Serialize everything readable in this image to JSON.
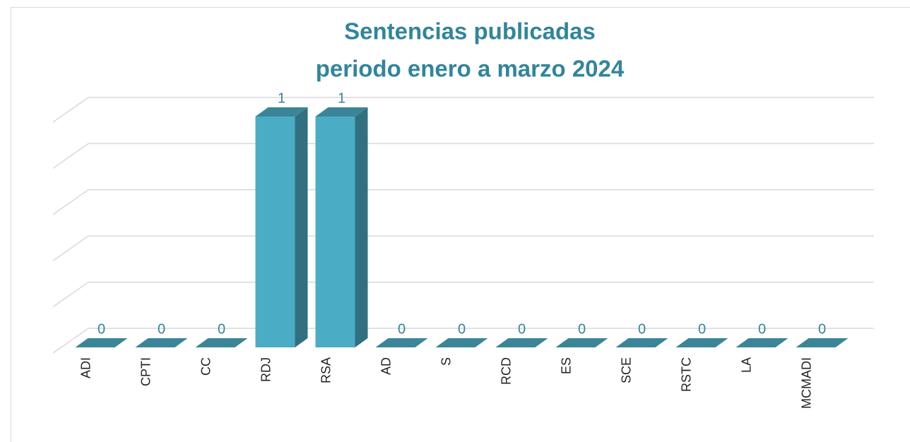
{
  "chart_data": {
    "type": "bar3d",
    "title": [
      "Sentencias publicadas",
      "periodo enero a marzo 2024"
    ],
    "categories": [
      "ADI",
      "CPTI",
      "CC",
      "RDJ",
      "RSA",
      "AD",
      "S",
      "RCD",
      "ES",
      "SCE",
      "RSTC",
      "LA",
      "MCMADI"
    ],
    "values": [
      0,
      0,
      0,
      1,
      1,
      0,
      0,
      0,
      0,
      0,
      0,
      0,
      0
    ],
    "color": "#4bacc6",
    "ylim": [
      0,
      1
    ],
    "yticks": [
      0,
      0.2,
      0.4,
      0.6,
      0.8,
      1
    ],
    "grid": true
  }
}
